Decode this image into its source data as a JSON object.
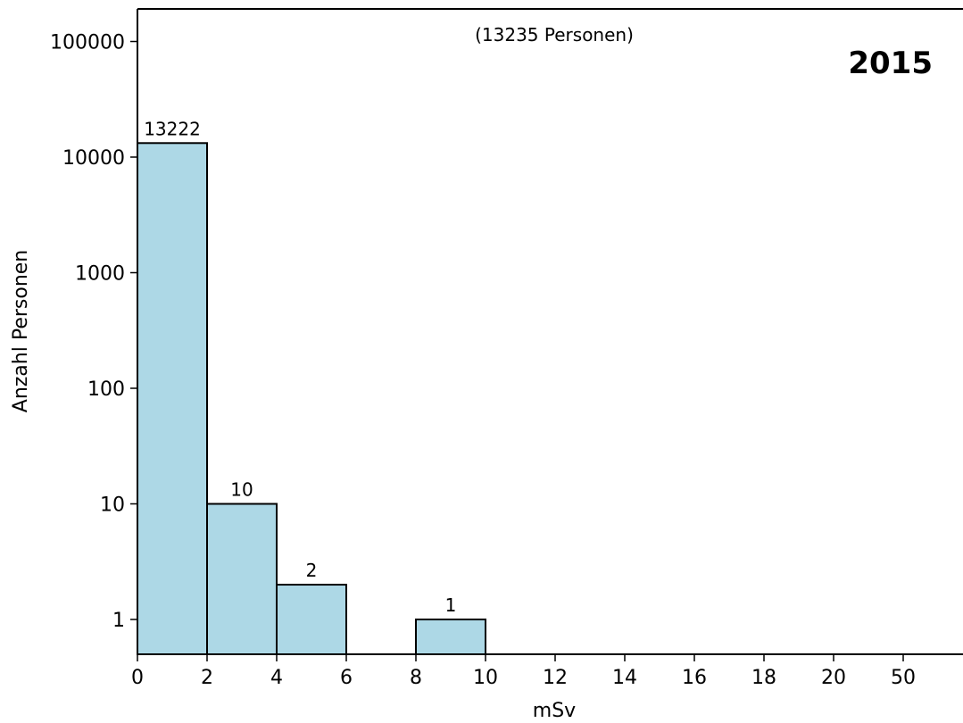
{
  "chart_data": {
    "type": "bar",
    "title": "2015",
    "subtitle": "(13235 Personen)",
    "xlabel": "mSv",
    "ylabel": "Anzahl Personen",
    "y_scale": "log",
    "ylim": [
      0.5,
      200000
    ],
    "y_ticks": [
      1,
      10,
      100,
      1000,
      10000,
      100000
    ],
    "y_tick_labels": [
      "1",
      "10",
      "100",
      "1000",
      "10000",
      "100000"
    ],
    "x_tick_labels": [
      "0",
      "2",
      "4",
      "6",
      "8",
      "10",
      "12",
      "14",
      "16",
      "18",
      "20",
      "50"
    ],
    "bins": [
      {
        "from": "0",
        "to": "2",
        "value": 13222,
        "label": "13222"
      },
      {
        "from": "2",
        "to": "4",
        "value": 10,
        "label": "10"
      },
      {
        "from": "4",
        "to": "6",
        "value": 2,
        "label": "2"
      },
      {
        "from": "8",
        "to": "10",
        "value": 1,
        "label": "1"
      }
    ],
    "grid": false,
    "colors": {
      "bar_fill": "#add8e6",
      "bar_edge": "#000000"
    }
  }
}
